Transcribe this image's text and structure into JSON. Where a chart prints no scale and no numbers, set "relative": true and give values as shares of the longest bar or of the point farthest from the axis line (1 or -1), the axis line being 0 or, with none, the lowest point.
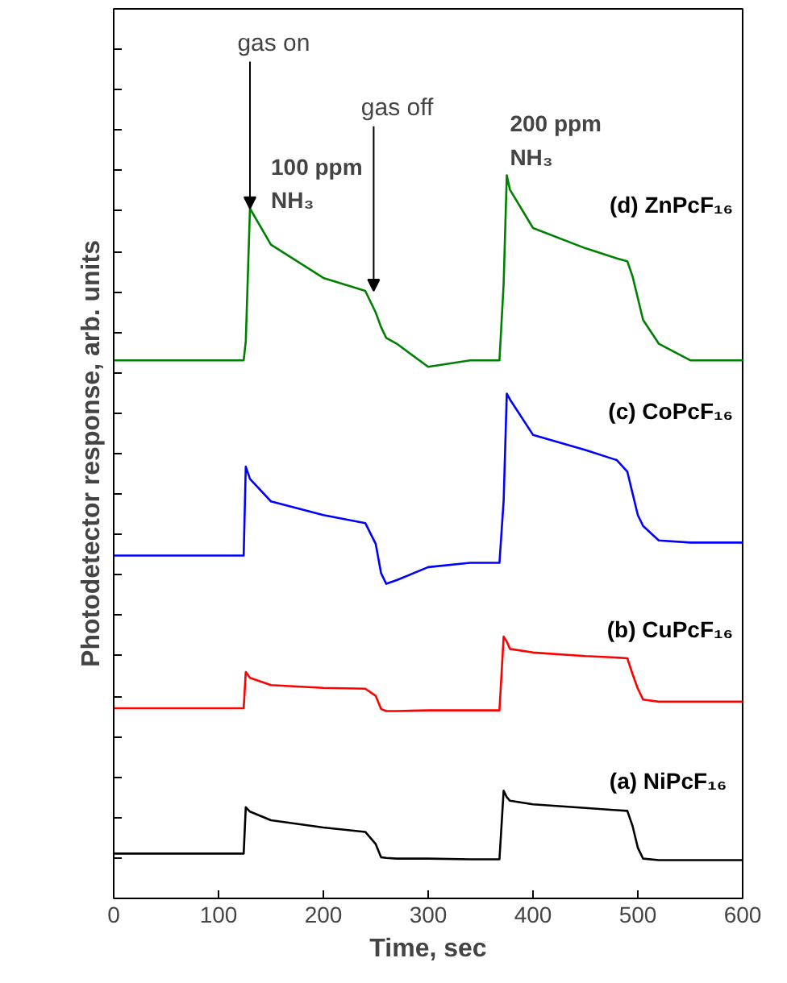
{
  "chart_data": {
    "type": "line",
    "relative": true,
    "xlabel": "Time, sec",
    "ylabel": "Photodetector response, arb. units",
    "xlim": [
      0,
      600
    ],
    "xticks": [
      0,
      100,
      200,
      300,
      400,
      500,
      600
    ],
    "grid": false,
    "tick_labels": "x",
    "x": [
      0,
      60,
      120,
      124,
      126,
      130,
      150,
      200,
      240,
      250,
      255,
      260,
      270,
      300,
      340,
      368,
      372,
      375,
      378,
      400,
      450,
      480,
      490,
      495,
      500,
      505,
      520,
      550,
      600
    ],
    "series": [
      {
        "name": "(a)  NiPcF₁₆",
        "color": "#000000",
        "values": [
          0.062,
          0.062,
          0.062,
          0.062,
          0.126,
          0.12,
          0.108,
          0.098,
          0.092,
          0.075,
          0.057,
          0.056,
          0.055,
          0.055,
          0.054,
          0.054,
          0.149,
          0.14,
          0.135,
          0.13,
          0.125,
          0.122,
          0.121,
          0.1,
          0.07,
          0.055,
          0.053,
          0.053,
          0.053
        ]
      },
      {
        "name": "(b) CuPcF₁₆",
        "color": "#ff0000",
        "values": [
          0.263,
          0.263,
          0.263,
          0.263,
          0.313,
          0.305,
          0.295,
          0.291,
          0.29,
          0.28,
          0.262,
          0.259,
          0.259,
          0.26,
          0.26,
          0.26,
          0.362,
          0.355,
          0.345,
          0.34,
          0.335,
          0.333,
          0.332,
          0.31,
          0.29,
          0.275,
          0.272,
          0.272,
          0.272
        ]
      },
      {
        "name": "(c) CoPcF₁₆",
        "color": "#0000ff",
        "values": [
          0.474,
          0.474,
          0.474,
          0.474,
          0.597,
          0.58,
          0.549,
          0.53,
          0.519,
          0.49,
          0.45,
          0.435,
          0.44,
          0.458,
          0.464,
          0.464,
          0.55,
          0.698,
          0.69,
          0.641,
          0.62,
          0.606,
          0.59,
          0.56,
          0.53,
          0.515,
          0.495,
          0.492,
          0.492
        ]
      },
      {
        "name": "(d) ZnPcF₁₆",
        "color": "#008000",
        "values": [
          0.744,
          0.744,
          0.744,
          0.744,
          0.77,
          0.954,
          0.904,
          0.858,
          0.84,
          0.81,
          0.79,
          0.775,
          0.767,
          0.735,
          0.744,
          0.744,
          0.85,
          1.0,
          0.98,
          0.927,
          0.899,
          0.885,
          0.881,
          0.86,
          0.83,
          0.8,
          0.767,
          0.744,
          0.744
        ]
      }
    ],
    "annotations": [
      {
        "text": "gas on",
        "x": 130,
        "y": 0.954
      },
      {
        "text": "gas off",
        "x": 248,
        "y": 0.84
      },
      "100 ppm NH₃",
      "200 ppm NH₃"
    ]
  }
}
